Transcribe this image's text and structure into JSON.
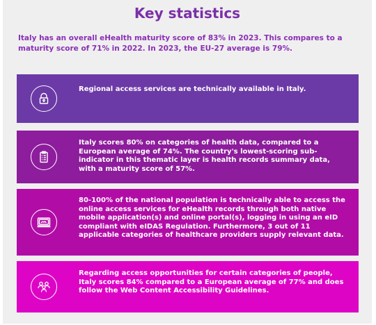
{
  "title": "Key statistics",
  "intro": "Italy has an overall eHealth maturity score of 83% in 2023. This compares to a maturity score of 71% in 2022. In 2023, the EU-27 average is 79%.",
  "cards": [
    {
      "icon": "padlock-icon",
      "color": "#6c3aa6",
      "text": "Regional access services are technically available in Italy."
    },
    {
      "icon": "clipboard-icon",
      "color": "#8d1d9c",
      "text": "Italy scores 80% on categories of health data, compared to a European average of 74%. The country's lowest-scoring sub-indicator in this thematic layer is health records summary data, with a maturity score of 57%."
    },
    {
      "icon": "monitor-icon",
      "color": "#b20ca7",
      "text": "80-100% of the national population is technically able to access the online access services for eHealth records through both native mobile application(s) and online portal(s), logging in using an eID compliant with eIDAS Regulation. Furthermore, 3 out of 11 applicable categories of healthcare providers supply relevant data."
    },
    {
      "icon": "people-icon",
      "color": "#de04c6",
      "text": "Regarding access opportunities for certain categories of people, Italy scores 84% compared to a European average of 77% and does follow the Web Content Accessibility Guidelines."
    }
  ]
}
